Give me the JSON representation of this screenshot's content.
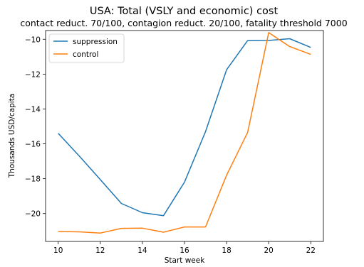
{
  "chart_data": {
    "type": "line",
    "title": "USA: Total (VSLY and economic) cost",
    "subtitle": "contact reduct. 70/100, contagion reduct. 20/100, fatality threshold 7000",
    "xlabel": "Start week",
    "ylabel": "Thousands USD/capita",
    "x": [
      10,
      11,
      12,
      13,
      14,
      15,
      16,
      17,
      18,
      19,
      20,
      21,
      22
    ],
    "xlim": [
      9.4,
      22.6
    ],
    "ylim": [
      -21.6,
      -9.5
    ],
    "xticks": [
      10,
      12,
      14,
      16,
      18,
      20,
      22
    ],
    "yticks": [
      -20,
      -18,
      -16,
      -14,
      -12,
      -10
    ],
    "grid": false,
    "legend_position": "top-left",
    "series": [
      {
        "name": "suppression",
        "color": "#1f77b4",
        "values": [
          -15.4,
          -16.7,
          -18.05,
          -19.42,
          -19.95,
          -20.12,
          -18.2,
          -15.3,
          -11.75,
          -10.08,
          -10.07,
          -9.97,
          -10.47
        ]
      },
      {
        "name": "control",
        "color": "#ff7f0e",
        "values": [
          -21.03,
          -21.05,
          -21.12,
          -20.85,
          -20.84,
          -21.07,
          -20.77,
          -20.77,
          -17.8,
          -15.35,
          -9.62,
          -10.42,
          -10.87
        ]
      }
    ]
  }
}
